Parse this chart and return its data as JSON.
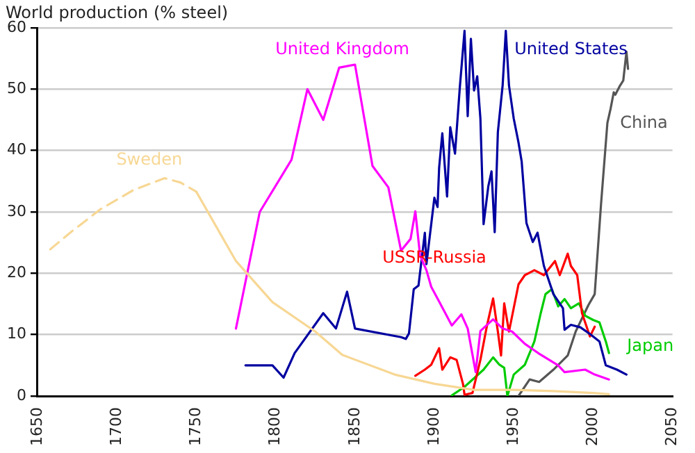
{
  "chart_data": {
    "type": "line",
    "ylabel": "World production (% steel)",
    "xlim": [
      1650,
      2050
    ],
    "xticks": [
      1650,
      1700,
      1750,
      1800,
      1850,
      1900,
      1950,
      2000,
      2050
    ],
    "ylim": [
      0,
      60
    ],
    "yticks": [
      0,
      10,
      20,
      30,
      40,
      50,
      60
    ],
    "grid": "y",
    "legend": false,
    "marker": "none",
    "series": [
      {
        "color": "#f7d794",
        "line_style": "dashed",
        "x": [
          1658,
          1670,
          1690,
          1710,
          1730,
          1740,
          1750
        ],
        "values": [
          23.9,
          26.5,
          30.5,
          33.5,
          35.5,
          34.8,
          33.3
        ]
      },
      {
        "name": "Sweden",
        "color": "#f7d794",
        "line_style": "solid",
        "x": [
          1750,
          1775,
          1798,
          1825,
          1842,
          1875,
          1900,
          1925,
          1950,
          1975,
          2000,
          2010
        ],
        "values": [
          33.3,
          22,
          15.3,
          10.5,
          6.7,
          3.5,
          2,
          1,
          1,
          0.8,
          0.5,
          0.3
        ]
      },
      {
        "name": "United Kingdom",
        "color": "#ff00ff",
        "line_style": "solid",
        "x": [
          1775,
          1790,
          1810,
          1820,
          1830,
          1840,
          1850,
          1861,
          1871,
          1879,
          1885,
          1888,
          1891,
          1895,
          1898,
          1903,
          1911,
          1917,
          1921,
          1926,
          1929,
          1937,
          1943,
          1949,
          1957,
          1966,
          1978,
          1982,
          1995,
          2001,
          2010
        ],
        "values": [
          11,
          30,
          38.5,
          50,
          45,
          53.5,
          54,
          37.5,
          34,
          23.7,
          25.6,
          30.1,
          22.9,
          20.5,
          17.8,
          15.4,
          11.5,
          13.3,
          11,
          3.9,
          10.6,
          12.5,
          11,
          10.5,
          8.5,
          6.9,
          5,
          3.9,
          4.3,
          3.5,
          2.7
        ]
      },
      {
        "name": "United States",
        "color": "#0000a0",
        "line_style": "solid",
        "x": [
          1781,
          1798,
          1805,
          1812,
          1830,
          1838,
          1845,
          1850,
          1879,
          1882,
          1884,
          1887,
          1890,
          1894,
          1895,
          1900,
          1902,
          1903,
          1905,
          1908,
          1910,
          1913,
          1916,
          1919,
          1921,
          1923,
          1925,
          1927,
          1929,
          1931,
          1934,
          1936,
          1938,
          1940,
          1943,
          1945,
          1947,
          1950,
          1953,
          1955,
          1958,
          1962,
          1965,
          1969,
          1975,
          1981,
          1982,
          1986,
          1992,
          1998,
          2004,
          2008,
          2015,
          2021
        ],
        "values": [
          5,
          5,
          3,
          7,
          13.5,
          11,
          17,
          11,
          9.6,
          9.3,
          10.2,
          17.4,
          18,
          26.6,
          21.5,
          32.3,
          30.8,
          37.2,
          42.8,
          32.5,
          43.8,
          39.5,
          50.2,
          59.5,
          45.6,
          58.2,
          49.8,
          52.1,
          45.2,
          28,
          34.2,
          36.6,
          26.7,
          43,
          50.6,
          59.5,
          50.6,
          45.2,
          41.3,
          38.2,
          28.2,
          25.1,
          26.6,
          21.2,
          16.6,
          14.3,
          10.8,
          11.6,
          11.2,
          10.1,
          8.9,
          5,
          4.3,
          3.5
        ]
      },
      {
        "name": "USSR-Russia",
        "color": "#ff0000",
        "line_style": "solid",
        "x": [
          1888,
          1894,
          1898,
          1903,
          1905,
          1910,
          1914,
          1918,
          1919,
          1924,
          1929,
          1933,
          1937,
          1940,
          1942,
          1944,
          1947,
          1953,
          1957,
          1963,
          1969,
          1976,
          1979,
          1984,
          1986,
          1990,
          1993,
          1998,
          2001
        ],
        "values": [
          3.3,
          4.3,
          5.1,
          7.8,
          4.3,
          6.3,
          5.9,
          2,
          0.2,
          0.5,
          5.9,
          11.3,
          15.9,
          10.5,
          6.6,
          15.1,
          10.5,
          18.2,
          19.7,
          20.5,
          19.7,
          22,
          19.7,
          23.2,
          21.2,
          19.7,
          13.5,
          9.7,
          11.3
        ]
      },
      {
        "name": "Japan",
        "color": "#00cc00",
        "line_style": "solid",
        "x": [
          1911,
          1919,
          1931,
          1937,
          1941,
          1944,
          1946,
          1950,
          1957,
          1963,
          1967,
          1970,
          1974,
          1978,
          1982,
          1986,
          1991,
          1995,
          2000,
          2004,
          2008,
          2010
        ],
        "values": [
          0.1,
          1.5,
          4.3,
          6.3,
          5.1,
          4.6,
          0,
          3.5,
          5.1,
          8.9,
          13.5,
          16.6,
          17.4,
          14.6,
          15.8,
          14.3,
          15.1,
          13.1,
          12.4,
          12,
          8.9,
          7
        ]
      },
      {
        "name": "China",
        "color": "#555555",
        "line_style": "solid",
        "x": [
          1953,
          1960,
          1966,
          1975,
          1984,
          1989,
          1997,
          2001,
          2005,
          2009,
          2011,
          2013,
          2014,
          2017,
          2019,
          2021,
          2022
        ],
        "values": [
          0,
          2.7,
          2.3,
          4.3,
          6.6,
          10.5,
          14.8,
          16.6,
          31.3,
          44.5,
          46.8,
          49.5,
          49.1,
          50.6,
          51.4,
          56.1,
          53.3
        ]
      }
    ]
  }
}
